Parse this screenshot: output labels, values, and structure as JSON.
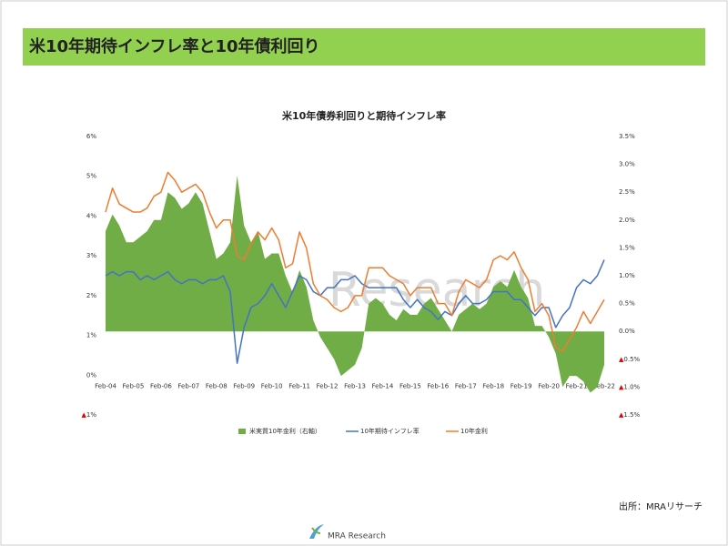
{
  "header": {
    "title": "米10年期待インフレ率と10年債利回り"
  },
  "watermark": "Research",
  "chart_data": {
    "type": "combo",
    "title": "米10年債券利回りと期待インフレ率",
    "categories": [
      "Feb-04",
      null,
      null,
      null,
      "Feb-05",
      null,
      null,
      null,
      "Feb-06",
      null,
      null,
      null,
      "Feb-07",
      null,
      null,
      null,
      "Feb-08",
      null,
      null,
      null,
      "Feb-09",
      null,
      null,
      null,
      "Feb-10",
      null,
      null,
      null,
      "Feb-11",
      null,
      null,
      null,
      "Feb-12",
      null,
      null,
      null,
      "Feb-13",
      null,
      null,
      null,
      "Feb-14",
      null,
      null,
      null,
      "Feb-15",
      null,
      null,
      null,
      "Feb-16",
      null,
      null,
      null,
      "Feb-17",
      null,
      null,
      null,
      "Feb-18",
      null,
      null,
      null,
      "Feb-19",
      null,
      null,
      null,
      "Feb-20",
      null,
      null,
      null,
      "Feb-21",
      null,
      null,
      null,
      "Feb-22"
    ],
    "series": [
      {
        "name": "米実質10年金利（右軸）",
        "kind": "area",
        "axis": "y2",
        "color": "#70ad47",
        "values": [
          1.8,
          2.1,
          1.9,
          1.6,
          1.6,
          1.7,
          1.8,
          2.0,
          2.0,
          2.5,
          2.4,
          2.2,
          2.3,
          2.5,
          2.3,
          1.8,
          1.3,
          1.4,
          1.6,
          2.8,
          1.9,
          1.6,
          1.8,
          1.3,
          1.4,
          1.4,
          1.0,
          0.7,
          1.1,
          0.8,
          0.2,
          -0.1,
          -0.3,
          -0.5,
          -0.8,
          -0.7,
          -0.6,
          -0.3,
          0.5,
          0.6,
          0.5,
          0.3,
          0.2,
          0.4,
          0.3,
          0.3,
          0.5,
          0.6,
          0.4,
          0.2,
          0.0,
          0.3,
          0.4,
          0.5,
          0.4,
          0.5,
          0.8,
          0.9,
          0.8,
          1.1,
          0.8,
          0.6,
          0.1,
          0.1,
          -0.1,
          -0.4,
          -1.0,
          -0.8,
          -0.8,
          -0.9,
          -1.1,
          -1.0,
          -0.6
        ]
      },
      {
        "name": "10年期待インフレ率",
        "kind": "line",
        "color": "#4472c4",
        "values": [
          2.5,
          2.6,
          2.5,
          2.6,
          2.6,
          2.4,
          2.5,
          2.4,
          2.5,
          2.6,
          2.4,
          2.3,
          2.4,
          2.4,
          2.3,
          2.4,
          2.4,
          2.5,
          2.1,
          0.3,
          1.2,
          1.7,
          1.8,
          2.0,
          2.3,
          2.0,
          1.7,
          2.1,
          2.5,
          2.4,
          2.1,
          2.0,
          2.2,
          2.2,
          2.4,
          2.4,
          2.5,
          2.3,
          2.2,
          2.2,
          2.2,
          2.2,
          2.2,
          1.9,
          1.7,
          1.9,
          1.7,
          1.6,
          1.4,
          1.6,
          1.5,
          1.8,
          2.0,
          1.8,
          1.8,
          1.9,
          2.1,
          2.1,
          2.1,
          1.9,
          1.9,
          1.7,
          1.5,
          1.7,
          1.7,
          1.2,
          1.5,
          1.7,
          2.2,
          2.4,
          2.3,
          2.5,
          2.9
        ]
      },
      {
        "name": "10年金利",
        "kind": "line",
        "color": "#ed7d31",
        "values": [
          4.1,
          4.7,
          4.3,
          4.2,
          4.1,
          4.1,
          4.2,
          4.5,
          4.6,
          5.1,
          4.9,
          4.6,
          4.7,
          4.8,
          4.6,
          4.1,
          3.7,
          3.9,
          3.9,
          3.0,
          2.9,
          3.3,
          3.6,
          3.4,
          3.7,
          3.4,
          2.7,
          2.8,
          3.6,
          3.2,
          2.3,
          2.0,
          1.9,
          1.7,
          1.6,
          1.7,
          2.0,
          2.0,
          2.7,
          2.7,
          2.7,
          2.5,
          2.4,
          2.3,
          2.0,
          2.2,
          2.2,
          2.2,
          1.8,
          1.8,
          1.5,
          2.1,
          2.4,
          2.3,
          2.2,
          2.4,
          2.9,
          3.0,
          2.9,
          3.1,
          2.7,
          2.4,
          1.6,
          1.8,
          1.5,
          0.7,
          0.6,
          0.9,
          1.2,
          1.6,
          1.3,
          1.6,
          1.9
        ]
      }
    ],
    "ylim": [
      -1,
      6
    ],
    "yticks": [
      {
        "value": -1,
        "label": "▲1%"
      },
      {
        "value": 0,
        "label": "0%"
      },
      {
        "value": 1,
        "label": "1%"
      },
      {
        "value": 2,
        "label": "2%"
      },
      {
        "value": 3,
        "label": "3%"
      },
      {
        "value": 4,
        "label": "4%"
      },
      {
        "value": 5,
        "label": "5%"
      },
      {
        "value": 6,
        "label": "6%"
      }
    ],
    "y2lim": [
      -1.5,
      3.5
    ],
    "y2ticks": [
      {
        "value": -1.5,
        "label": "▲1.5%"
      },
      {
        "value": -1,
        "label": "▲1.0%"
      },
      {
        "value": -0.5,
        "label": "▲0.5%"
      },
      {
        "value": 0,
        "label": "0.0%"
      },
      {
        "value": 0.5,
        "label": "0.5%"
      },
      {
        "value": 1,
        "label": "1.0%"
      },
      {
        "value": 1.5,
        "label": "1.5%"
      },
      {
        "value": 2,
        "label": "2.0%"
      },
      {
        "value": 2.5,
        "label": "2.5%"
      },
      {
        "value": 3,
        "label": "3.0%"
      },
      {
        "value": 3.5,
        "label": "3.5%"
      }
    ],
    "legend": "bottom",
    "negative_marker_color": "#e00000"
  },
  "footer": {
    "source": "出所：MRAリサーチ",
    "logo": "MRA Research"
  }
}
